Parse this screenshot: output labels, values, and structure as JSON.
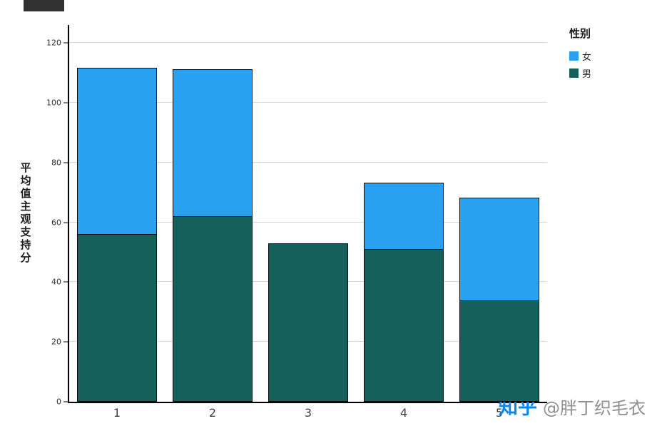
{
  "chart_data": {
    "type": "bar",
    "stacked": true,
    "title": "",
    "categories": [
      "1",
      "2",
      "3",
      "4",
      "5"
    ],
    "series": [
      {
        "name": "男",
        "color": "#16605b",
        "values": [
          56,
          62,
          53,
          51,
          34
        ]
      },
      {
        "name": "女",
        "color": "#2aa1f0",
        "values": [
          56,
          49.5,
          0,
          22.5,
          34.5
        ]
      }
    ],
    "totals": [
      112,
      111.5,
      53,
      73.5,
      68.5
    ],
    "xlabel": "",
    "ylabel": "平均值主观支持分",
    "yticks": [
      0,
      20,
      40,
      60,
      80,
      100,
      120
    ],
    "ylim": [
      0,
      126
    ],
    "grid": "horizontal",
    "legend_title": "性别",
    "legend_position": "top-right"
  },
  "legend": {
    "title": "性别",
    "items": [
      {
        "label": "女",
        "color": "#2aa1f0"
      },
      {
        "label": "男",
        "color": "#16605b"
      }
    ]
  },
  "watermark": {
    "brand": "知乎",
    "handle": "@胖丁织毛衣"
  },
  "colors": {
    "axis": "#000000",
    "grid": "#d9d9d9",
    "background": "#ffffff",
    "tick_label": "#2e2e2e",
    "watermark_brand": "#0084ff",
    "watermark_handle": "#8f8f8f"
  }
}
